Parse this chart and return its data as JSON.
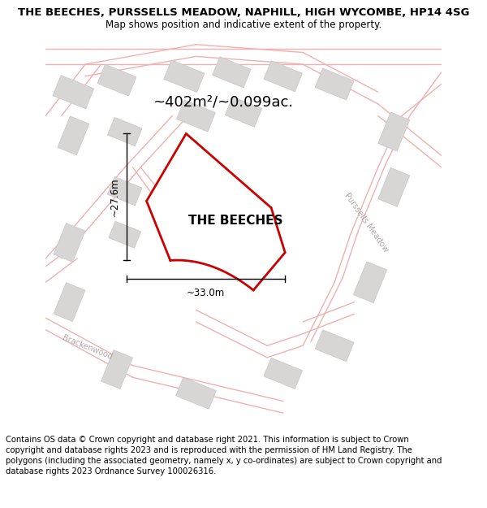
{
  "title": "THE BEECHES, PURSSELLS MEADOW, NAPHILL, HIGH WYCOMBE, HP14 4SG",
  "subtitle": "Map shows position and indicative extent of the property.",
  "footer": "Contains OS data © Crown copyright and database right 2021. This information is subject to Crown copyright and database rights 2023 and is reproduced with the permission of HM Land Registry. The polygons (including the associated geometry, namely x, y co-ordinates) are subject to Crown copyright and database rights 2023 Ordnance Survey 100026316.",
  "area_label": "~402m²/~0.099ac.",
  "property_label": "THE BEECHES",
  "dim_horiz": "~33.0m",
  "dim_vert": "~27.6m",
  "road_label_1": "Purssells Meadow",
  "road_label_2": "Brackenwood",
  "plot_color": "#cc0000",
  "road_color": "#f0b0b0",
  "road_lw": 1.0,
  "building_color": "#d8d5d5",
  "building_edge": "#c8c5c5",
  "figsize": [
    6.0,
    6.25
  ],
  "dpi": 100,
  "title_fontsize": 9.5,
  "subtitle_fontsize": 8.5,
  "footer_fontsize": 7.2,
  "area_fontsize": 13,
  "label_fontsize": 11,
  "dim_fontsize": 8.5
}
